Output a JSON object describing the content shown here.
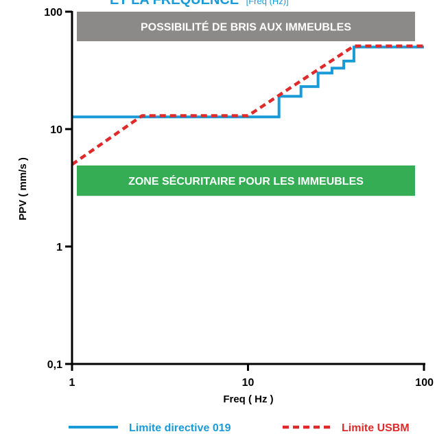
{
  "chart_data": {
    "type": "line",
    "title_main": "ET LA FRÉQUENCE",
    "title_sub": "[Freq (Hz)]",
    "xlabel": "Freq ( Hz )",
    "ylabel": "PPV ( mm/s )",
    "xscale": "log",
    "yscale": "log",
    "xlim": [
      1,
      100
    ],
    "ylim": [
      0.1,
      100
    ],
    "x_ticks": [
      {
        "value": 1,
        "label": "1"
      },
      {
        "value": 10,
        "label": "10"
      },
      {
        "value": 100,
        "label": "100"
      }
    ],
    "y_ticks": [
      {
        "value": 0.1,
        "label": "0,1"
      },
      {
        "value": 1,
        "label": "1"
      },
      {
        "value": 10,
        "label": "10"
      },
      {
        "value": 100,
        "label": "100"
      }
    ],
    "zones": [
      {
        "label": "POSSIBILITÉ DE BRIS AUX IMMEUBLES",
        "color": "#8c8a88",
        "y_range": [
          56,
          100
        ]
      },
      {
        "label": "ZONE SÉCURITAIRE POUR LES IMMEUBLES",
        "color": "#34ad55",
        "y_range": [
          2.7,
          4.9
        ]
      }
    ],
    "series": [
      {
        "name": "Limite directive 019",
        "color": "#1a9bd7",
        "style": "solid",
        "x": [
          1,
          15,
          15,
          20,
          20,
          25,
          25,
          30,
          30,
          35,
          35,
          40,
          40,
          100
        ],
        "y": [
          12.7,
          12.7,
          19,
          19,
          23,
          23,
          30,
          30,
          33,
          33,
          38,
          38,
          50,
          50
        ]
      },
      {
        "name": "Limite USBM",
        "color": "#de2a2a",
        "style": "dashed",
        "x": [
          1,
          2.5,
          10,
          40,
          100
        ],
        "y": [
          5,
          13,
          13,
          51,
          51
        ]
      }
    ],
    "legend_position": "bottom",
    "title_color": "#1a9bd7"
  }
}
